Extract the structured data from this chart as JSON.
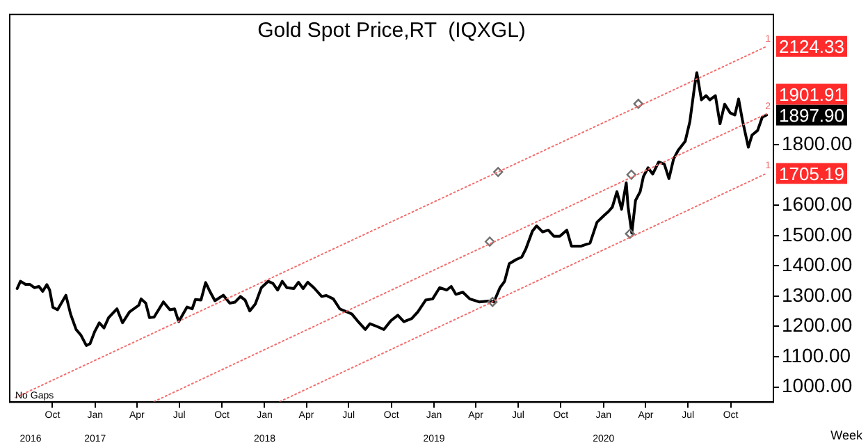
{
  "chart_data": {
    "type": "line",
    "title": "Gold Spot Price,RT  (IQXGL)",
    "xlabel": "Week",
    "xlim": [
      "2016-07-01",
      "2021-01-01"
    ],
    "xticks": [
      {
        "value": "2016-10-01",
        "label": "Oct"
      },
      {
        "value": "2017-01-01",
        "label": "Jan"
      },
      {
        "value": "2017-04-01",
        "label": "Apr"
      },
      {
        "value": "2017-07-01",
        "label": "Jul"
      },
      {
        "value": "2017-10-01",
        "label": "Oct"
      },
      {
        "value": "2018-01-01",
        "label": "Jan"
      },
      {
        "value": "2018-04-01",
        "label": "Apr"
      },
      {
        "value": "2018-07-01",
        "label": "Jul"
      },
      {
        "value": "2018-10-01",
        "label": "Oct"
      },
      {
        "value": "2019-01-01",
        "label": "Jan"
      },
      {
        "value": "2019-04-01",
        "label": "Apr"
      },
      {
        "value": "2019-07-01",
        "label": "Jul"
      },
      {
        "value": "2019-10-01",
        "label": "Oct"
      },
      {
        "value": "2020-01-01",
        "label": "Jan"
      },
      {
        "value": "2020-04-01",
        "label": "Apr"
      },
      {
        "value": "2020-07-01",
        "label": "Jul"
      },
      {
        "value": "2020-10-01",
        "label": "Oct"
      }
    ],
    "x2lim": [
      "2016-07-01",
      "2021-01-01"
    ],
    "x2ticks": [
      {
        "value": "2016-08-15",
        "label": "2016"
      },
      {
        "value": "2017-01-01",
        "label": "2017"
      },
      {
        "value": "2018-01-01",
        "label": "2018"
      },
      {
        "value": "2019-01-01",
        "label": "2019"
      },
      {
        "value": "2020-01-01",
        "label": "2020"
      }
    ],
    "ylim": [
      950,
      2230
    ],
    "yticks": [
      {
        "value": 1000,
        "label": "1000.00"
      },
      {
        "value": 1100,
        "label": "1100.00"
      },
      {
        "value": 1200,
        "label": "1200.00"
      },
      {
        "value": 1300,
        "label": "1300.00"
      },
      {
        "value": 1400,
        "label": "1400.00"
      },
      {
        "value": 1500,
        "label": "1500.00"
      },
      {
        "value": 1600,
        "label": "1600.00"
      },
      {
        "value": 1800,
        "label": "1800.00"
      }
    ],
    "grid": false,
    "legend": false,
    "annotations": [
      "No Gaps",
      {
        "text": "1",
        "x": "2020-12-17",
        "y": 2124.33
      },
      {
        "text": "2",
        "x": "2020-12-17",
        "y": 1901.91
      },
      {
        "text": "1",
        "x": "2020-12-17",
        "y": 1705.19
      }
    ],
    "series": [
      {
        "type": "line",
        "color": "#f26d6d",
        "line_style": "dotted",
        "marker": "none",
        "x": [
          "2016-07-13",
          "2020-12-17"
        ],
        "values": [
          965,
          2124.33
        ],
        "value_labels": [
          null,
          "2124.33"
        ]
      },
      {
        "type": "line",
        "color": "#f26d6d",
        "line_style": "dotted",
        "marker": "none",
        "x": [
          "2017-05-08",
          "2020-12-17"
        ],
        "values": [
          952,
          1901.91
        ],
        "value_labels": [
          null,
          "1901.91"
        ]
      },
      {
        "type": "line",
        "color": "#f26d6d",
        "line_style": "dotted",
        "marker": "none",
        "x": [
          "2018-02-03",
          "2020-12-17"
        ],
        "values": [
          952,
          1705.19
        ],
        "value_labels": [
          null,
          "1705.19"
        ]
      },
      {
        "type": "scatter",
        "color": "#707070",
        "marker": "diamond",
        "x": [
          "2019-05-19",
          "2020-03-16",
          "2019-05-01",
          "2020-03-01",
          "2019-05-07",
          "2020-02-27"
        ],
        "values": [
          1710,
          1935,
          1480,
          1701,
          1281,
          1506
        ]
      },
      {
        "type": "line",
        "color": "#000000",
        "line_style": "solid",
        "marker": "none",
        "x": [
          "2016-07-17",
          "2016-07-24",
          "2016-08-04",
          "2016-08-13",
          "2016-08-23",
          "2016-09-02",
          "2016-09-10",
          "2016-09-19",
          "2016-09-25",
          "2016-10-02",
          "2016-10-12",
          "2016-10-30",
          "2016-11-09",
          "2016-11-21",
          "2016-12-01",
          "2016-12-13",
          "2016-12-21",
          "2016-12-31",
          "2017-01-10",
          "2017-01-20",
          "2017-01-30",
          "2017-02-17",
          "2017-03-01",
          "2017-03-16",
          "2017-04-05",
          "2017-04-10",
          "2017-04-20",
          "2017-04-28",
          "2017-05-08",
          "2017-05-28",
          "2017-06-11",
          "2017-06-21",
          "2017-06-30",
          "2017-07-18",
          "2017-07-29",
          "2017-08-05",
          "2017-08-17",
          "2017-08-27",
          "2017-09-06",
          "2017-09-16",
          "2017-10-04",
          "2017-10-18",
          "2017-10-29",
          "2017-11-10",
          "2017-11-20",
          "2017-11-30",
          "2017-12-12",
          "2017-12-25",
          "2018-01-09",
          "2018-01-19",
          "2018-01-29",
          "2018-02-08",
          "2018-02-18",
          "2018-03-05",
          "2018-03-15",
          "2018-03-25",
          "2018-04-04",
          "2018-04-17",
          "2018-05-04",
          "2018-05-14",
          "2018-05-29",
          "2018-06-12",
          "2018-07-08",
          "2018-07-22",
          "2018-08-06",
          "2018-08-16",
          "2018-08-31",
          "2018-09-15",
          "2018-09-30",
          "2018-10-15",
          "2018-10-28",
          "2018-11-14",
          "2018-11-27",
          "2018-12-14",
          "2018-12-29",
          "2019-01-13",
          "2019-01-28",
          "2019-02-07",
          "2019-02-17",
          "2019-03-04",
          "2019-03-19",
          "2019-04-08",
          "2019-04-28",
          "2019-05-10",
          "2019-05-23",
          "2019-06-02",
          "2019-06-12",
          "2019-06-27",
          "2019-07-09",
          "2019-07-18",
          "2019-08-01",
          "2019-08-10",
          "2019-08-23",
          "2019-09-04",
          "2019-09-16",
          "2019-09-29",
          "2019-10-14",
          "2019-10-24",
          "2019-11-13",
          "2019-12-03",
          "2019-12-18",
          "2020-01-02",
          "2020-01-12",
          "2020-01-20",
          "2020-01-30",
          "2020-02-09",
          "2020-02-19",
          "2020-02-23",
          "2020-03-02",
          "2020-03-10",
          "2020-03-20",
          "2020-03-27",
          "2020-04-06",
          "2020-04-16",
          "2020-04-29",
          "2020-05-11",
          "2020-05-21",
          "2020-05-31",
          "2020-06-10",
          "2020-06-25",
          "2020-07-05",
          "2020-07-15",
          "2020-07-20",
          "2020-07-30",
          "2020-08-09",
          "2020-08-17",
          "2020-08-29",
          "2020-09-08",
          "2020-09-18",
          "2020-09-30",
          "2020-10-10",
          "2020-10-18",
          "2020-10-26",
          "2020-11-08",
          "2020-11-16",
          "2020-11-28",
          "2020-12-08",
          "2020-12-17"
        ],
        "values": [
          1325,
          1349,
          1339,
          1339,
          1328,
          1332,
          1316,
          1338,
          1320,
          1263,
          1255,
          1303,
          1241,
          1190,
          1172,
          1137,
          1143,
          1183,
          1212,
          1195,
          1229,
          1258,
          1212,
          1248,
          1270,
          1291,
          1277,
          1229,
          1231,
          1281,
          1255,
          1258,
          1216,
          1264,
          1258,
          1289,
          1287,
          1345,
          1313,
          1285,
          1303,
          1277,
          1280,
          1299,
          1287,
          1251,
          1274,
          1328,
          1349,
          1342,
          1320,
          1349,
          1328,
          1325,
          1346,
          1325,
          1346,
          1328,
          1299,
          1302,
          1291,
          1258,
          1241,
          1215,
          1190,
          1209,
          1200,
          1190,
          1219,
          1237,
          1216,
          1226,
          1248,
          1287,
          1291,
          1328,
          1320,
          1332,
          1306,
          1313,
          1291,
          1281,
          1284,
          1281,
          1328,
          1349,
          1407,
          1421,
          1429,
          1457,
          1515,
          1532,
          1512,
          1518,
          1498,
          1498,
          1518,
          1465,
          1465,
          1475,
          1544,
          1566,
          1580,
          1594,
          1645,
          1587,
          1674,
          1594,
          1508,
          1616,
          1645,
          1695,
          1724,
          1703,
          1743,
          1736,
          1688,
          1753,
          1782,
          1811,
          1876,
          1991,
          2038,
          1948,
          1962,
          1948,
          1962,
          1869,
          1934,
          1905,
          1898,
          1951,
          1883,
          1792,
          1832,
          1847,
          1891,
          1897.9
        ],
        "value_labels": [
          null,
          null,
          null,
          null,
          null,
          null,
          null,
          null,
          null,
          null,
          null,
          null,
          null,
          null,
          null,
          null,
          null,
          null,
          null,
          null,
          null,
          null,
          null,
          null,
          null,
          null,
          null,
          null,
          null,
          null,
          null,
          null,
          null,
          null,
          null,
          null,
          null,
          null,
          null,
          null,
          null,
          null,
          null,
          null,
          null,
          null,
          null,
          null,
          null,
          null,
          null,
          null,
          null,
          null,
          null,
          null,
          null,
          null,
          null,
          null,
          null,
          null,
          null,
          null,
          null,
          null,
          null,
          null,
          null,
          null,
          null,
          null,
          null,
          null,
          null,
          null,
          null,
          null,
          null,
          null,
          null,
          null,
          null,
          null,
          null,
          null,
          null,
          null,
          null,
          null,
          null,
          null,
          null,
          null,
          null,
          null,
          null,
          null,
          null,
          null,
          null,
          null,
          null,
          null,
          null,
          null,
          null,
          null,
          null,
          null,
          null,
          null,
          null,
          null,
          null,
          null,
          null,
          null,
          null,
          null,
          null,
          null,
          null,
          null,
          null,
          null,
          null,
          null,
          null,
          null,
          null,
          null,
          null,
          null,
          null,
          null,
          null,
          "1897.90"
        ]
      }
    ]
  }
}
